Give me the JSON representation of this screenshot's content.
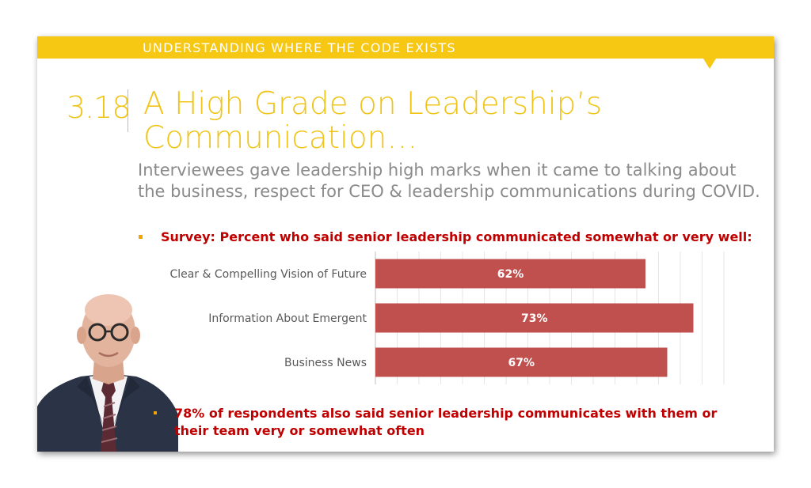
{
  "banner": {
    "title": "UNDERSTANDING WHERE THE CODE EXISTS"
  },
  "slide": {
    "section_number": "3.18",
    "title": "A High Grade on Leadership’s Communication…",
    "subtitle": "Interviewees gave leadership high marks when it came to talking about the business, respect for CEO & leadership communications during COVID.",
    "survey_bullet": "Survey: Percent who said senior leadership communicated somewhat or very well:",
    "note_bullet": "78% of respondents also said senior leadership communicates with them or their team very or somewhat often"
  },
  "colors": {
    "accent_yellow": "#f6c713",
    "bar_red": "#c0504d",
    "text_red": "#c00000",
    "subtitle_gray": "#8a8a8a"
  },
  "chart_data": {
    "type": "bar",
    "orientation": "horizontal",
    "categories": [
      "Clear & Compelling Vision of Future",
      "Information About Emergent",
      "Business News"
    ],
    "values": [
      62,
      73,
      67
    ],
    "data_labels": [
      "62%",
      "73%",
      "67%"
    ],
    "xlim": [
      0,
      80
    ],
    "grid": true,
    "legend": "none"
  }
}
